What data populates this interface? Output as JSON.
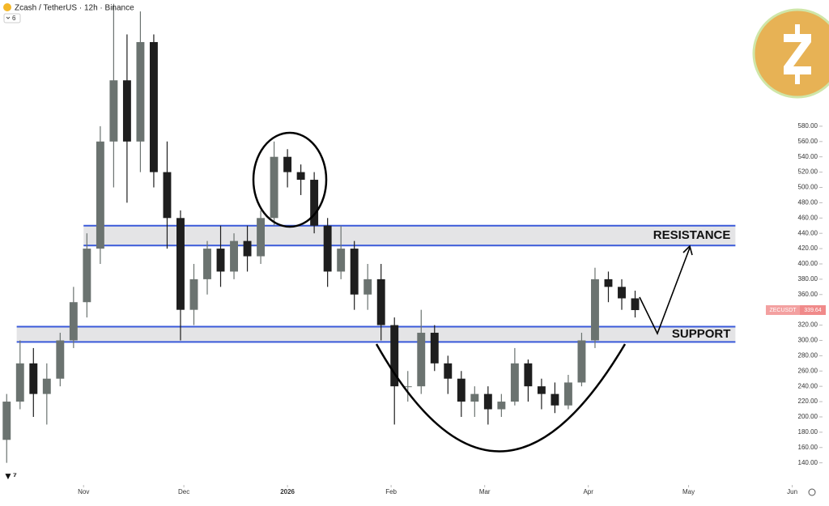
{
  "chart_data": {
    "type": "candlestick",
    "title": "Zcash / TetherUS · 12h · Binance",
    "hidden_indicators": 6,
    "symbol": "ZECUSDT",
    "x": [
      8,
      12,
      16,
      20,
      24,
      28,
      32,
      36,
      40,
      44,
      48,
      52,
      56,
      60,
      64,
      68,
      72,
      76,
      80,
      84,
      88,
      92,
      96,
      100,
      104,
      108,
      112,
      116,
      120,
      124,
      128,
      132,
      136,
      140,
      144,
      148,
      152,
      156,
      160,
      164,
      168,
      172,
      176,
      180,
      184,
      188,
      192,
      196
    ],
    "open": [
      170,
      220,
      270,
      230,
      250,
      300,
      350,
      420,
      560,
      640,
      560,
      690,
      520,
      460,
      340,
      380,
      420,
      390,
      430,
      410,
      460,
      540,
      520,
      510,
      450,
      390,
      420,
      360,
      380,
      320,
      240,
      240,
      310,
      270,
      250,
      220,
      230,
      210,
      220,
      270,
      240,
      230,
      215,
      245,
      300,
      380,
      370,
      355
    ],
    "high": [
      230,
      300,
      290,
      270,
      310,
      370,
      440,
      580,
      740,
      700,
      730,
      700,
      560,
      470,
      400,
      430,
      450,
      440,
      450,
      470,
      560,
      550,
      530,
      520,
      460,
      450,
      430,
      400,
      400,
      330,
      260,
      340,
      320,
      280,
      260,
      240,
      240,
      230,
      290,
      275,
      250,
      245,
      255,
      310,
      395,
      390,
      380,
      365
    ],
    "low": [
      140,
      210,
      200,
      190,
      240,
      290,
      330,
      400,
      500,
      480,
      520,
      500,
      420,
      300,
      320,
      360,
      370,
      380,
      390,
      400,
      450,
      500,
      490,
      440,
      370,
      380,
      340,
      340,
      300,
      190,
      220,
      230,
      260,
      230,
      200,
      200,
      190,
      200,
      215,
      220,
      210,
      205,
      210,
      240,
      290,
      350,
      340,
      330
    ],
    "close": [
      220,
      270,
      230,
      250,
      300,
      350,
      420,
      560,
      640,
      560,
      690,
      520,
      460,
      340,
      380,
      420,
      390,
      430,
      410,
      460,
      540,
      520,
      510,
      450,
      390,
      420,
      360,
      380,
      320,
      240,
      240,
      310,
      270,
      250,
      220,
      230,
      210,
      220,
      270,
      240,
      230,
      215,
      245,
      300,
      380,
      370,
      355,
      339.64
    ],
    "up_color": "#6b7370",
    "down_color": "#1e1e1e",
    "xlim": [
      6,
      254
    ],
    "ylim": [
      110,
      745
    ],
    "xticks": [
      {
        "value": 31,
        "label": "Nov"
      },
      {
        "value": 61,
        "label": "Dec"
      },
      {
        "value": 92,
        "label": "2026"
      },
      {
        "value": 123,
        "label": "Feb"
      },
      {
        "value": 151,
        "label": "Mar"
      },
      {
        "value": 182,
        "label": "Apr"
      },
      {
        "value": 212,
        "label": "May"
      },
      {
        "value": 243,
        "label": "Jun"
      }
    ],
    "yticks": [
      {
        "value": 140,
        "label": "140.00"
      },
      {
        "value": 160,
        "label": "160.00"
      },
      {
        "value": 180,
        "label": "180.00"
      },
      {
        "value": 200,
        "label": "200.00"
      },
      {
        "value": 220,
        "label": "220.00"
      },
      {
        "value": 240,
        "label": "240.00"
      },
      {
        "value": 260,
        "label": "260.00"
      },
      {
        "value": 280,
        "label": "280.00"
      },
      {
        "value": 300,
        "label": "300.00"
      },
      {
        "value": 320,
        "label": "320.00"
      },
      {
        "value": 340,
        "label": "340.00"
      },
      {
        "value": 360,
        "label": "360.00"
      },
      {
        "value": 380,
        "label": "380.00"
      },
      {
        "value": 400,
        "label": "400.00"
      },
      {
        "value": 420,
        "label": "420.00"
      },
      {
        "value": 440,
        "label": "440.00"
      },
      {
        "value": 460,
        "label": "460.00"
      },
      {
        "value": 480,
        "label": "480.00"
      },
      {
        "value": 500,
        "label": "500.00"
      },
      {
        "value": 520,
        "label": "520.00"
      },
      {
        "value": 540,
        "label": "540.00"
      },
      {
        "value": 560,
        "label": "560.00"
      },
      {
        "value": 580,
        "label": "580.00"
      }
    ],
    "zones": [
      {
        "label": "RESISTANCE",
        "range": [
          424,
          450
        ],
        "x_range": [
          31,
          226
        ]
      },
      {
        "label": "SUPPORT",
        "range": [
          298,
          318
        ],
        "x_range": [
          11,
          226
        ]
      }
    ]
  }
}
